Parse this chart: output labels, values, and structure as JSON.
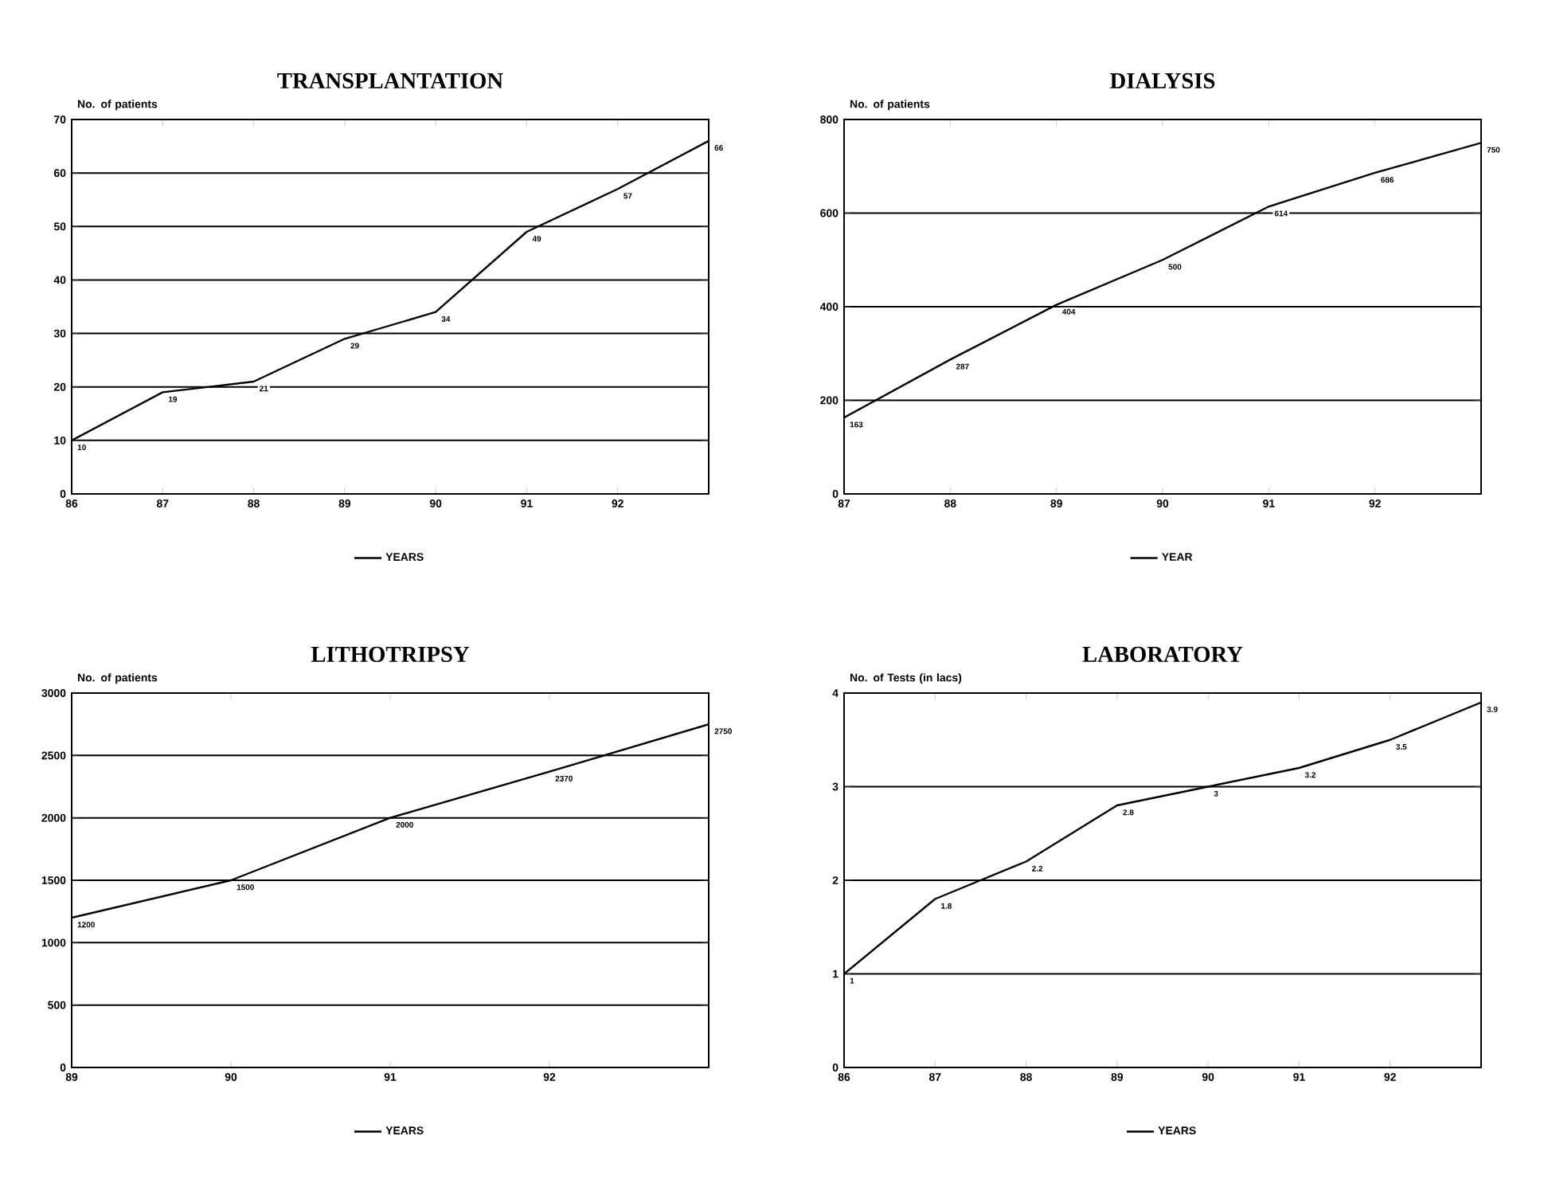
{
  "chart_data": [
    {
      "type": "line",
      "title": "TRANSPLANTATION",
      "ylabel": "No. of patients",
      "x": [
        86,
        87,
        88,
        89,
        90,
        91,
        92,
        93
      ],
      "series": [
        {
          "name": "YEARS",
          "color": "#000000",
          "values": [
            10,
            19,
            21,
            29,
            34,
            49,
            57,
            66
          ]
        }
      ],
      "xlim": [
        86,
        93
      ],
      "xticks": [
        86,
        87,
        88,
        89,
        90,
        91,
        92
      ],
      "ylim": [
        0,
        70
      ],
      "yticks": [
        0,
        10,
        20,
        30,
        40,
        50,
        60,
        70
      ],
      "grid": "y",
      "legend": "bottom",
      "data_labels": true
    },
    {
      "type": "line",
      "title": "DIALYSIS",
      "ylabel": "No. of patients",
      "x": [
        87,
        88,
        89,
        90,
        91,
        92,
        93
      ],
      "series": [
        {
          "name": "YEAR",
          "color": "#000000",
          "values": [
            163,
            287,
            404,
            500,
            614,
            686,
            750
          ]
        }
      ],
      "xlim": [
        87,
        93
      ],
      "xticks": [
        87,
        88,
        89,
        90,
        91,
        92
      ],
      "ylim": [
        0,
        800
      ],
      "yticks": [
        0,
        200,
        400,
        600,
        800
      ],
      "grid": "y",
      "legend": "bottom",
      "data_labels": true
    },
    {
      "type": "line",
      "title": "LITHOTRIPSY",
      "ylabel": "No. of patients",
      "x": [
        89,
        90,
        91,
        92,
        93
      ],
      "series": [
        {
          "name": "YEARS",
          "color": "#000000",
          "values": [
            1200,
            1500,
            2000,
            2370,
            2750
          ]
        }
      ],
      "xlim": [
        89,
        93
      ],
      "xticks": [
        89,
        90,
        91,
        92
      ],
      "ylim": [
        0,
        3000
      ],
      "yticks": [
        0,
        500,
        1000,
        1500,
        2000,
        2500,
        3000
      ],
      "grid": "y",
      "legend": "bottom",
      "data_labels": true
    },
    {
      "type": "line",
      "title": "LABORATORY",
      "ylabel": "No. of Tests (in lacs)",
      "x": [
        86,
        87,
        88,
        89,
        90,
        91,
        92,
        93
      ],
      "series": [
        {
          "name": "YEARS",
          "color": "#000000",
          "values": [
            1,
            1.8,
            2.2,
            2.8,
            3,
            3.2,
            3.5,
            3.9
          ]
        }
      ],
      "xlim": [
        86,
        93
      ],
      "xticks": [
        86,
        87,
        88,
        89,
        90,
        91,
        92
      ],
      "ylim": [
        0,
        4
      ],
      "yticks": [
        0,
        1,
        2,
        3,
        4
      ],
      "grid": "y",
      "legend": "bottom",
      "data_labels": true
    }
  ]
}
